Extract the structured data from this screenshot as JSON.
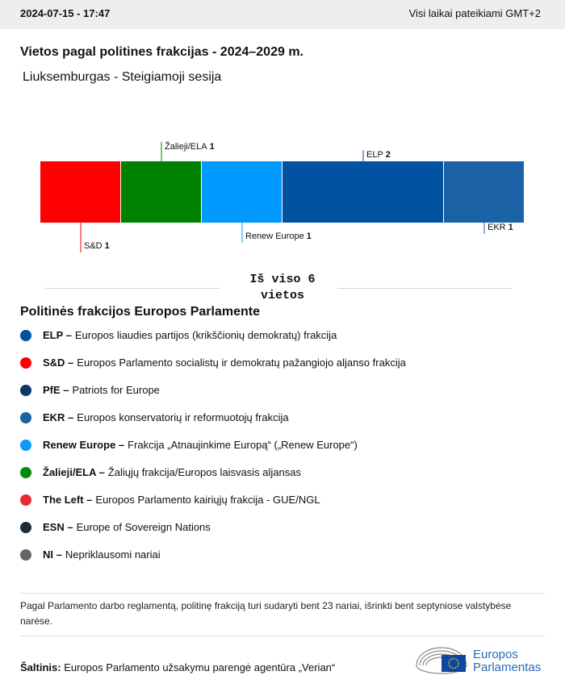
{
  "header": {
    "timestamp": "2024-07-15 - 17:47",
    "timezone_note": "Visi laikai pateikiami GMT+2"
  },
  "chart_data": {
    "type": "stacked-bar",
    "title": "Vietos pagal politines frakcijas - 2024–2029 m.",
    "subtitle": "Liuksemburgas - Steigiamoji sesija",
    "xlim": [
      0,
      6
    ],
    "series": [
      {
        "name": "S&D",
        "color": "#ff0000",
        "values": [
          1
        ]
      },
      {
        "name": "Žalieji/ELA",
        "color": "#008000",
        "values": [
          1
        ]
      },
      {
        "name": "Renew Europe",
        "color": "#0099ff",
        "values": [
          1
        ]
      },
      {
        "name": "ELP",
        "color": "#0152a1",
        "values": [
          2
        ]
      },
      {
        "name": "EKR",
        "color": "#1b63a6",
        "values": [
          1
        ]
      }
    ],
    "total_text": "Iš viso 6 vietos"
  },
  "legend": {
    "title": "Politinės frakcijos Europos Parlamente",
    "items": [
      {
        "abbr": "ELP –",
        "text": "Europos liaudies partijos (krikščionių demokratų) frakcija",
        "color": "#0152a1"
      },
      {
        "abbr": "S&D –",
        "text": "Europos Parlamento socialistų ir demokratų pažangiojo aljanso frakcija",
        "color": "#ff0000"
      },
      {
        "abbr": "PfE –",
        "text": "Patriots for Europe",
        "color": "#0d3569"
      },
      {
        "abbr": "EKR –",
        "text": "Europos konservatorių ir reformuotojų frakcija",
        "color": "#1b63a6"
      },
      {
        "abbr": "Renew Europe –",
        "text": "Frakcija „Atnaujinkime Europą“ („Renew Europe“)",
        "color": "#0d99fc"
      },
      {
        "abbr": "Žalieji/ELA –",
        "text": "Žaliųjų frakcija/Europos laisvasis aljansas",
        "color": "#068a0c"
      },
      {
        "abbr": "The Left –",
        "text": "Europos Parlamento kairiųjų frakcija - GUE/NGL",
        "color": "#e82a2f"
      },
      {
        "abbr": "ESN –",
        "text": "Europe of Sovereign Nations",
        "color": "#1e2a3a"
      },
      {
        "abbr": "NI –",
        "text": "Nepriklausomi nariai",
        "color": "#666666"
      }
    ]
  },
  "footer": {
    "note": "Pagal Parlamento darbo reglamentą, politinę frakciją turi sudaryti bent 23 nariai, išrinkti bent septyniose valstybėse narėse.",
    "source_label": "Šaltinis:",
    "source_text": "Europos Parlamento užsakymu parengė agentūra „Verian“",
    "logo_line1": "Europos",
    "logo_line2": "Parlamentas"
  }
}
